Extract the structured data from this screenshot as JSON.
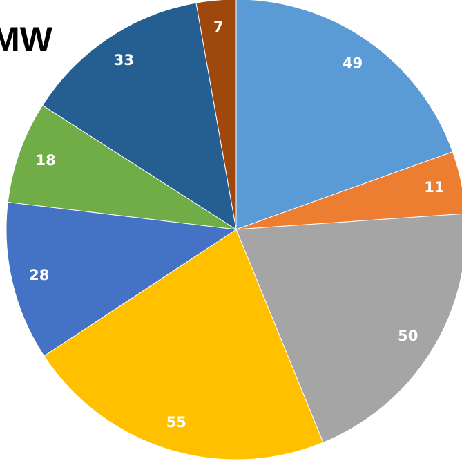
{
  "chart_data": {
    "type": "pie",
    "title": "MW",
    "categories": [
      null,
      null,
      null,
      null,
      null,
      null,
      null,
      null
    ],
    "values": [
      49,
      11,
      50,
      55,
      28,
      18,
      33,
      7
    ],
    "colors": [
      "#5b9bd5",
      "#ed7d31",
      "#a5a5a5",
      "#ffc000",
      "#4472c4",
      "#70ad47",
      "#255e91",
      "#9e480e"
    ]
  }
}
